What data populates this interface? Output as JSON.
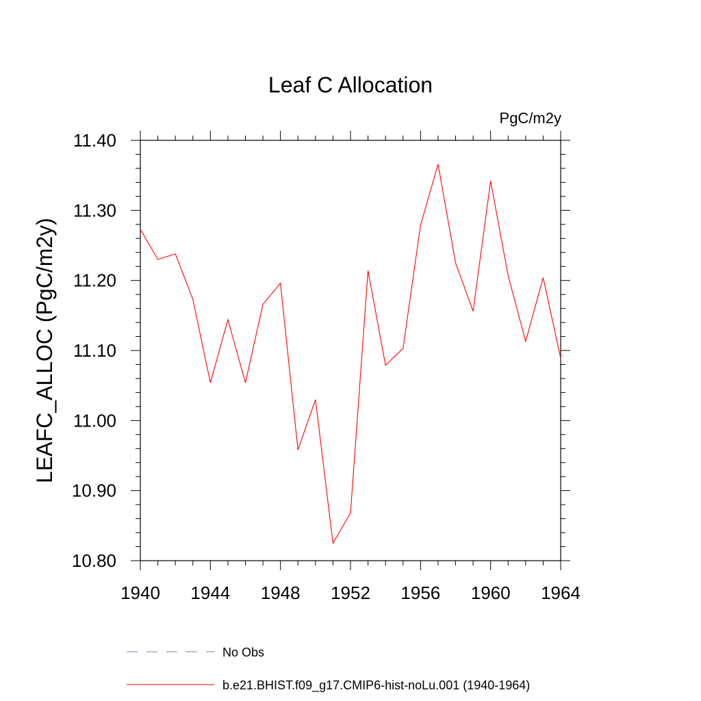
{
  "chart_data": {
    "type": "line",
    "title": "Leaf C Allocation",
    "units_label": "PgC/m2y",
    "ylabel": "LEAFC_ALLOC  (PgC/m2y)",
    "xlabel": "",
    "xlim": [
      1940,
      1964
    ],
    "ylim": [
      10.8,
      11.4
    ],
    "x_ticks": [
      1940,
      1944,
      1948,
      1952,
      1956,
      1960,
      1964
    ],
    "x_tick_labels": [
      "1940",
      "1944",
      "1948",
      "1952",
      "1956",
      "1960",
      "1964"
    ],
    "y_ticks": [
      10.8,
      10.9,
      11.0,
      11.1,
      11.2,
      11.3,
      11.4
    ],
    "y_tick_labels": [
      "10.80",
      "10.90",
      "11.00",
      "11.10",
      "11.20",
      "11.30",
      "11.40"
    ],
    "grid": false,
    "legend_position": "bottom",
    "x": [
      1940,
      1941,
      1942,
      1943,
      1944,
      1945,
      1946,
      1947,
      1948,
      1949,
      1950,
      1951,
      1952,
      1953,
      1954,
      1955,
      1956,
      1957,
      1958,
      1959,
      1960,
      1961,
      1962,
      1963,
      1964
    ],
    "series": [
      {
        "name": "b.e21.BHIST.f09_g17.CMIP6-hist-noLu.001 (1940-1964)",
        "color": "#ff0000",
        "style": "solid",
        "values": [
          11.273,
          11.23,
          11.238,
          11.173,
          11.054,
          11.144,
          11.054,
          11.166,
          11.196,
          10.958,
          11.03,
          10.825,
          10.868,
          11.214,
          11.079,
          11.103,
          11.279,
          11.366,
          11.225,
          11.156,
          11.342,
          11.207,
          11.113,
          11.204,
          11.089
        ]
      }
    ],
    "legend": [
      {
        "label": "No Obs",
        "color": "#7777cc",
        "style": "dashed"
      },
      {
        "label": "b.e21.BHIST.f09_g17.CMIP6-hist-noLu.001 (1940-1964)",
        "color": "#ff0000",
        "style": "solid"
      }
    ]
  }
}
